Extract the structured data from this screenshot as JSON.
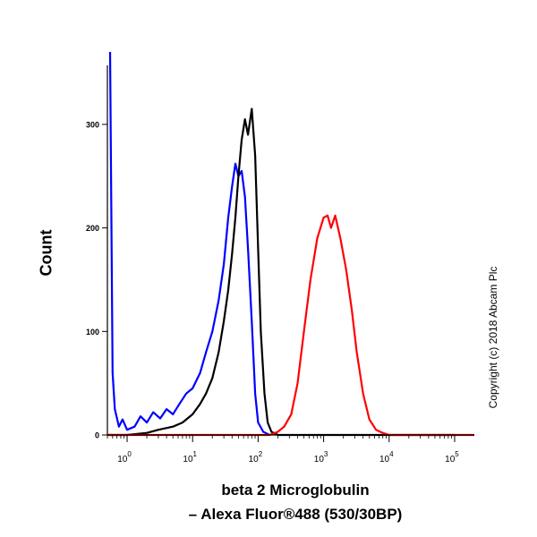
{
  "chart_data": {
    "type": "line",
    "xscale": "log",
    "xlim": [
      0.5,
      200000
    ],
    "ylim": [
      0,
      370
    ],
    "xticks": [
      1,
      10,
      100,
      1000,
      10000,
      100000
    ],
    "xtick_labels": [
      {
        "base": "10",
        "exp": "0"
      },
      {
        "base": "10",
        "exp": "1"
      },
      {
        "base": "10",
        "exp": "2"
      },
      {
        "base": "10",
        "exp": "3"
      },
      {
        "base": "10",
        "exp": "4"
      },
      {
        "base": "10",
        "exp": "5"
      }
    ],
    "yticks": [
      0,
      100,
      200,
      300
    ],
    "ytick_labels": [
      "0",
      "100",
      "200",
      "300"
    ],
    "xlabel": [
      "beta 2 Microglobulin",
      "– Alexa Fluor®488 (530/30BP)"
    ],
    "ylabel": "Count",
    "grid": false,
    "series": [
      {
        "color": "#0000ff",
        "points": [
          [
            0.55,
            370
          ],
          [
            0.6,
            60
          ],
          [
            0.65,
            25
          ],
          [
            0.75,
            8
          ],
          [
            0.85,
            15
          ],
          [
            1.0,
            5
          ],
          [
            1.3,
            8
          ],
          [
            1.6,
            18
          ],
          [
            2.0,
            12
          ],
          [
            2.5,
            22
          ],
          [
            3.2,
            16
          ],
          [
            4.0,
            25
          ],
          [
            5.0,
            20
          ],
          [
            6.3,
            30
          ],
          [
            8.0,
            40
          ],
          [
            10,
            45
          ],
          [
            13,
            60
          ],
          [
            16,
            80
          ],
          [
            20,
            100
          ],
          [
            25,
            130
          ],
          [
            30,
            165
          ],
          [
            35,
            210
          ],
          [
            40,
            240
          ],
          [
            45,
            262
          ],
          [
            50,
            250
          ],
          [
            56,
            255
          ],
          [
            63,
            230
          ],
          [
            70,
            180
          ],
          [
            80,
            110
          ],
          [
            90,
            40
          ],
          [
            100,
            12
          ],
          [
            120,
            3
          ],
          [
            150,
            0
          ]
        ]
      },
      {
        "color": "#000000",
        "points": [
          [
            0.5,
            0
          ],
          [
            1.0,
            0
          ],
          [
            2.0,
            2
          ],
          [
            3.0,
            5
          ],
          [
            5.0,
            8
          ],
          [
            7.0,
            12
          ],
          [
            10,
            20
          ],
          [
            13,
            30
          ],
          [
            16,
            40
          ],
          [
            20,
            55
          ],
          [
            25,
            80
          ],
          [
            30,
            110
          ],
          [
            35,
            140
          ],
          [
            40,
            175
          ],
          [
            45,
            210
          ],
          [
            50,
            250
          ],
          [
            56,
            285
          ],
          [
            63,
            305
          ],
          [
            70,
            290
          ],
          [
            80,
            315
          ],
          [
            90,
            270
          ],
          [
            100,
            180
          ],
          [
            110,
            100
          ],
          [
            125,
            40
          ],
          [
            140,
            12
          ],
          [
            160,
            3
          ],
          [
            200,
            0
          ],
          [
            100000,
            0
          ]
        ]
      },
      {
        "color": "#ff0000",
        "points": [
          [
            0.5,
            0
          ],
          [
            150,
            0
          ],
          [
            200,
            3
          ],
          [
            250,
            8
          ],
          [
            320,
            20
          ],
          [
            400,
            50
          ],
          [
            500,
            100
          ],
          [
            630,
            150
          ],
          [
            800,
            190
          ],
          [
            1000,
            210
          ],
          [
            1150,
            212
          ],
          [
            1300,
            200
          ],
          [
            1500,
            212
          ],
          [
            1800,
            190
          ],
          [
            2200,
            160
          ],
          [
            2700,
            120
          ],
          [
            3200,
            80
          ],
          [
            4000,
            40
          ],
          [
            5000,
            15
          ],
          [
            6300,
            5
          ],
          [
            8000,
            2
          ],
          [
            10000,
            0
          ],
          [
            200000,
            0
          ]
        ]
      }
    ]
  },
  "copyright": "Copyright (c) 2018 Abcam Plc"
}
